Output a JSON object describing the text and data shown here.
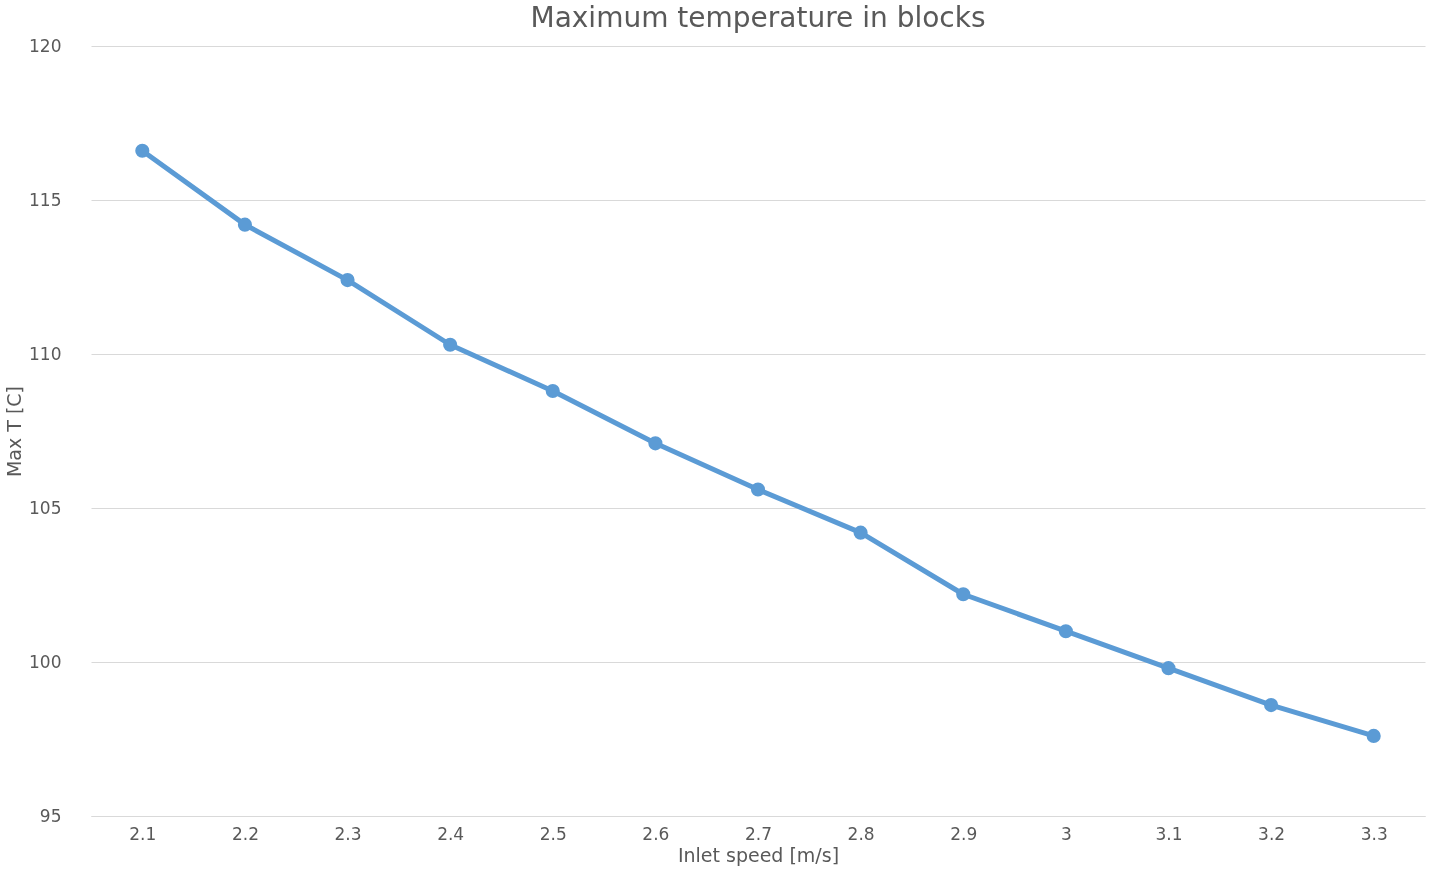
{
  "chart_data": {
    "type": "line",
    "title": "Maximum temperature in blocks",
    "xlabel": "Inlet speed [m/s]",
    "ylabel": "Max T [C]",
    "categories": [
      "2.1",
      "2.2",
      "2.3",
      "2.4",
      "2.5",
      "2.6",
      "2.7",
      "2.8",
      "2.9",
      "3",
      "3.1",
      "3.2",
      "3.3"
    ],
    "series": [
      {
        "color": "#5b9bd5",
        "values": [
          116.6,
          114.2,
          112.4,
          110.3,
          108.8,
          107.1,
          105.6,
          104.2,
          102.2,
          101.0,
          99.8,
          98.6,
          97.6
        ]
      }
    ],
    "ylim": [
      95,
      120
    ],
    "yticks": [
      95,
      100,
      105,
      110,
      115,
      120
    ],
    "grid": "y",
    "marker": "circle",
    "line_style": "solid"
  }
}
